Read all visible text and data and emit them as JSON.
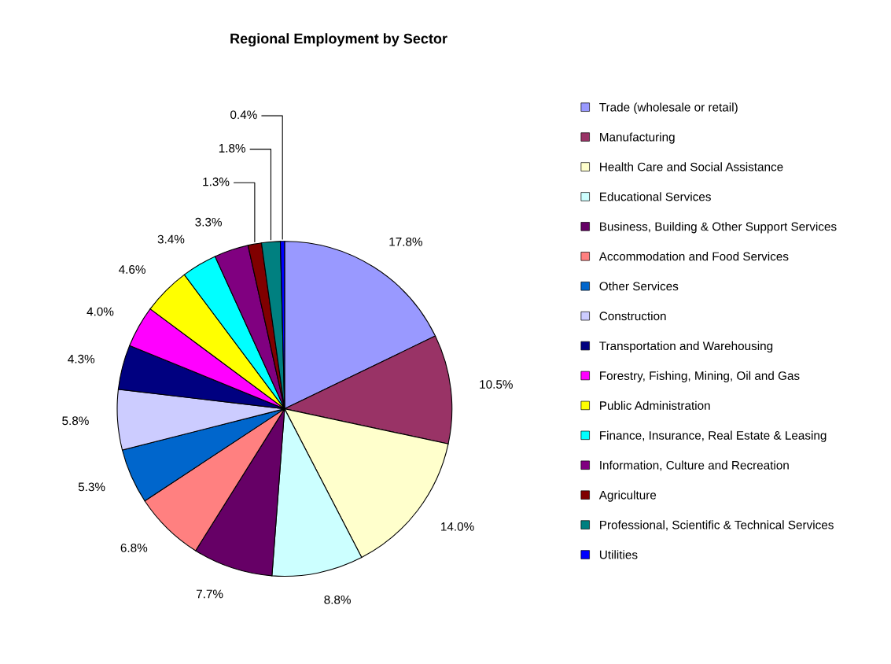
{
  "chart_data": {
    "type": "pie",
    "title": "Regional Employment by Sector",
    "categories": [
      "Trade (wholesale or retail)",
      "Manufacturing",
      "Health Care and Social Assistance",
      "Educational Services",
      "Business, Building & Other Support Services",
      "Accommodation and Food Services",
      "Other Services",
      "Construction",
      "Transportation and Warehousing",
      "Forestry, Fishing, Mining, Oil and Gas",
      "Public Administration",
      "Finance, Insurance, Real Estate & Leasing",
      "Information, Culture and Recreation",
      "Agriculture",
      "Professional, Scientific & Technical Services",
      "Utilities"
    ],
    "values": [
      17.8,
      10.5,
      14.0,
      8.8,
      7.7,
      6.8,
      5.3,
      5.8,
      4.3,
      4.0,
      4.6,
      3.4,
      3.3,
      1.3,
      1.8,
      0.4
    ],
    "value_labels": [
      "17.8%",
      "10.5%",
      "14.0%",
      "8.8%",
      "7.7%",
      "6.8%",
      "5.3%",
      "5.8%",
      "4.3%",
      "4.0%",
      "4.6%",
      "3.4%",
      "3.3%",
      "1.3%",
      "1.8%",
      "0.4%"
    ],
    "colors": [
      "#9999ff",
      "#993366",
      "#ffffcc",
      "#ccffff",
      "#660066",
      "#ff8080",
      "#0066cc",
      "#ccccff",
      "#000080",
      "#ff00ff",
      "#ffff00",
      "#00ffff",
      "#800080",
      "#800000",
      "#008080",
      "#0000ff"
    ],
    "legend": "right"
  }
}
